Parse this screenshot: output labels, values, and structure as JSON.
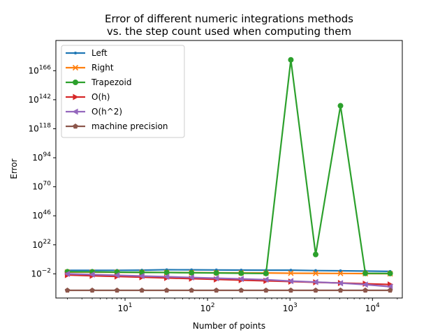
{
  "chart_data": {
    "type": "line",
    "title": [
      "Error of different numeric integrations methods",
      "vs. the step count used when computing them"
    ],
    "xlabel": "Number of points",
    "ylabel": "Error",
    "xscale": "log",
    "yscale": "log",
    "xlim": [
      1.45,
      23000
    ],
    "ylim": [
      -22,
      191
    ],
    "x": [
      2,
      4,
      8,
      16,
      32,
      64,
      128,
      256,
      512,
      1024,
      2048,
      4096,
      8192,
      16384
    ],
    "x_ticks": [
      {
        "value": 10,
        "base": "10",
        "exp": "1"
      },
      {
        "value": 100,
        "base": "10",
        "exp": "2"
      },
      {
        "value": 1000,
        "base": "10",
        "exp": "3"
      },
      {
        "value": 10000,
        "base": "10",
        "exp": "4"
      }
    ],
    "y_ticks": [
      {
        "value": -2,
        "base": "10",
        "exp": "−2"
      },
      {
        "value": 22,
        "base": "10",
        "exp": "22"
      },
      {
        "value": 46,
        "base": "10",
        "exp": "46"
      },
      {
        "value": 70,
        "base": "10",
        "exp": "70"
      },
      {
        "value": 94,
        "base": "10",
        "exp": "94"
      },
      {
        "value": 118,
        "base": "10",
        "exp": "118"
      },
      {
        "value": 142,
        "base": "10",
        "exp": "142"
      },
      {
        "value": 166,
        "base": "10",
        "exp": "166"
      }
    ],
    "legend_position": "top-left",
    "series": [
      {
        "name": "Left",
        "color": "#1f77b4",
        "marker": "point",
        "log10_values": [
          0.9,
          0.9,
          0.9,
          1.0,
          1.4,
          1.3,
          1.2,
          1.1,
          1.0,
          1.0,
          0.7,
          0.5,
          0.3,
          0.0
        ]
      },
      {
        "name": "Right",
        "color": "#ff7f0e",
        "marker": "x",
        "log10_values": [
          -0.6,
          -0.6,
          -0.7,
          -0.8,
          -0.9,
          -1.0,
          -1.1,
          -1.2,
          -1.3,
          -1.5,
          -1.6,
          -1.7,
          -1.8,
          -1.9
        ]
      },
      {
        "name": "Trapezoid",
        "color": "#2ca02c",
        "marker": "circle",
        "log10_values": [
          -0.3,
          -0.4,
          -0.6,
          -0.8,
          -0.9,
          -1.1,
          -1.3,
          -1.5,
          -1.7,
          175,
          14,
          137,
          -1.6,
          -1.7
        ]
      },
      {
        "name": "O(h)",
        "color": "#d62728",
        "marker": "triangle-right",
        "log10_values": [
          -3,
          -3.6,
          -4.2,
          -4.8,
          -5.4,
          -6.0,
          -6.6,
          -7.2,
          -7.8,
          -8.4,
          -9.0,
          -9.6,
          -10.2,
          -10.8
        ]
      },
      {
        "name": "O(h^2)",
        "color": "#9467bd",
        "marker": "triangle-left",
        "log10_values": [
          -2,
          -2.6,
          -3.2,
          -3.8,
          -4.4,
          -5.0,
          -5.6,
          -6.2,
          -6.8,
          -8.0,
          -8.8,
          -9.7,
          -10.9,
          -12.6
        ]
      },
      {
        "name": "machine precision",
        "color": "#8c564b",
        "marker": "pentagon",
        "log10_values": [
          -15.65,
          -15.65,
          -15.65,
          -15.65,
          -15.65,
          -15.65,
          -15.65,
          -15.65,
          -15.65,
          -15.65,
          -15.65,
          -15.65,
          -15.65,
          -15.65
        ]
      }
    ]
  }
}
